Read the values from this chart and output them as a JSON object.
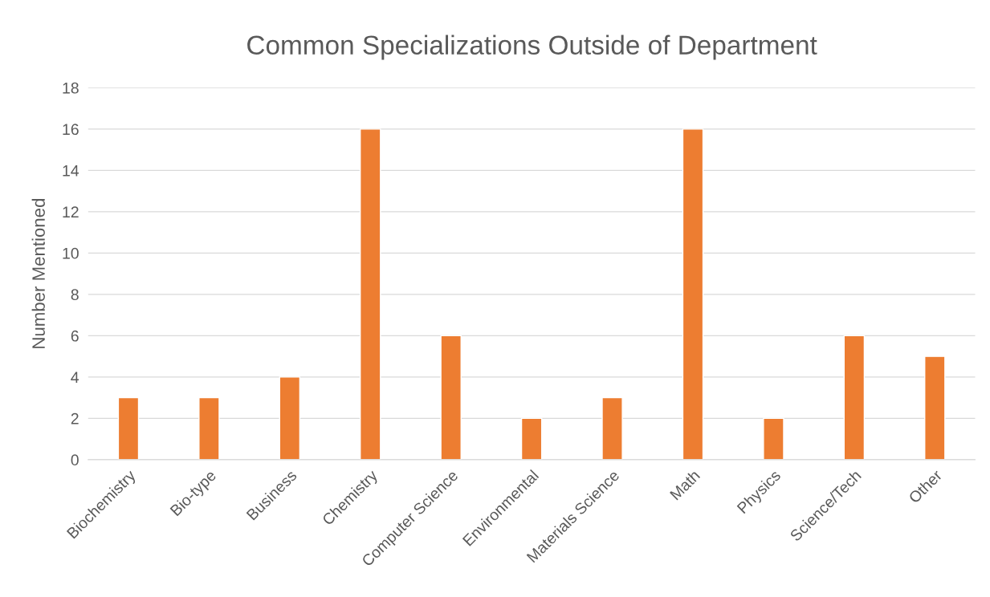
{
  "chart_data": {
    "type": "bar",
    "title": "Common Specializations Outside of Department",
    "ylabel": "Number Mentioned",
    "categories": [
      "Biochemistry",
      "Bio-type",
      "Business",
      "Chemistry",
      "Computer Science",
      "Environmental",
      "Materials Science",
      "Math",
      "Physics",
      "Science/Tech",
      "Other"
    ],
    "values": [
      3,
      3,
      4,
      16,
      6,
      2,
      3,
      16,
      2,
      6,
      5
    ],
    "color": "#ed7d31",
    "ylim": [
      0,
      18
    ],
    "yticks": [
      0,
      2,
      4,
      6,
      8,
      10,
      12,
      14,
      16,
      18
    ],
    "grid": "y",
    "legend": false
  }
}
